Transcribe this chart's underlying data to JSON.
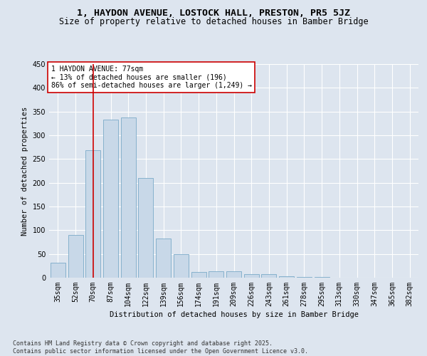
{
  "title_line1": "1, HAYDON AVENUE, LOSTOCK HALL, PRESTON, PR5 5JZ",
  "title_line2": "Size of property relative to detached houses in Bamber Bridge",
  "xlabel": "Distribution of detached houses by size in Bamber Bridge",
  "ylabel": "Number of detached properties",
  "categories": [
    "35sqm",
    "52sqm",
    "70sqm",
    "87sqm",
    "104sqm",
    "122sqm",
    "139sqm",
    "156sqm",
    "174sqm",
    "191sqm",
    "209sqm",
    "226sqm",
    "243sqm",
    "261sqm",
    "278sqm",
    "295sqm",
    "313sqm",
    "330sqm",
    "347sqm",
    "365sqm",
    "382sqm"
  ],
  "values": [
    32,
    90,
    268,
    333,
    337,
    210,
    83,
    50,
    12,
    14,
    14,
    7,
    7,
    3,
    1,
    1,
    0,
    0,
    0,
    0,
    0
  ],
  "bar_color": "#c8d8e8",
  "bar_edge_color": "#7aaac8",
  "vline_x": 2,
  "vline_color": "#cc0000",
  "annotation_text": "1 HAYDON AVENUE: 77sqm\n← 13% of detached houses are smaller (196)\n86% of semi-detached houses are larger (1,249) →",
  "annotation_box_color": "#ffffff",
  "annotation_box_edge_color": "#cc0000",
  "ylim": [
    0,
    450
  ],
  "yticks": [
    0,
    50,
    100,
    150,
    200,
    250,
    300,
    350,
    400,
    450
  ],
  "background_color": "#dde5ef",
  "plot_background_color": "#dde5ef",
  "footer_text": "Contains HM Land Registry data © Crown copyright and database right 2025.\nContains public sector information licensed under the Open Government Licence v3.0.",
  "title_fontsize": 9.5,
  "subtitle_fontsize": 8.5,
  "axis_label_fontsize": 7.5,
  "tick_fontsize": 7,
  "annotation_fontsize": 7,
  "footer_fontsize": 6
}
